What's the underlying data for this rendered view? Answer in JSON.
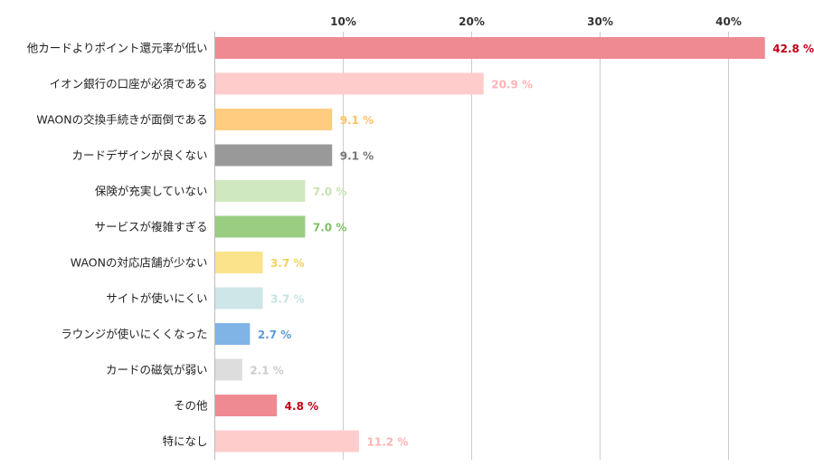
{
  "chart_data": {
    "type": "bar",
    "orientation": "horizontal",
    "title": "",
    "xlabel": "",
    "ylabel": "",
    "xlim": [
      0,
      45
    ],
    "x_ticks": [
      10,
      20,
      30,
      40
    ],
    "x_tick_labels": [
      "10%",
      "20%",
      "30%",
      "40%"
    ],
    "grid": true,
    "value_suffix": " %",
    "categories": [
      "他カードよりポイント還元率が低い",
      "イオン銀行の口座が必須である",
      "WAONの交換手続きが面倒である",
      "カードデザインが良くない",
      "保険が充実していない",
      "サービスが複雑すぎる",
      "WAONの対応店舗が少ない",
      "サイトが使いにくい",
      "ラウンジが使いにくくなった",
      "カードの磁気が弱い",
      "その他",
      "特になし"
    ],
    "values": [
      42.8,
      20.9,
      9.1,
      9.1,
      7.0,
      7.0,
      3.7,
      3.7,
      2.7,
      2.1,
      4.8,
      11.2
    ],
    "value_labels": [
      "42.8 %",
      "20.9 %",
      "9.1 %",
      "9.1 %",
      "7.0 %",
      "7.0 %",
      "3.7 %",
      "3.7 %",
      "2.7 %",
      "2.1 %",
      "4.8 %",
      "11.2 %"
    ],
    "bar_colors": [
      "#ef8a92",
      "#ffcccc",
      "#ffcc80",
      "#999999",
      "#cfe8c0",
      "#9acd82",
      "#fae38a",
      "#cfe6e8",
      "#80b3e6",
      "#dddddd",
      "#ef8a92",
      "#ffcccc"
    ],
    "label_colors": [
      "#c00018",
      "#ffb3b3",
      "#ffc266",
      "#777777",
      "#c6e3b0",
      "#7fbf64",
      "#f2d35c",
      "#c6e2e4",
      "#5b9bd9",
      "#cccccc",
      "#c00018",
      "#ffb3b3"
    ]
  }
}
